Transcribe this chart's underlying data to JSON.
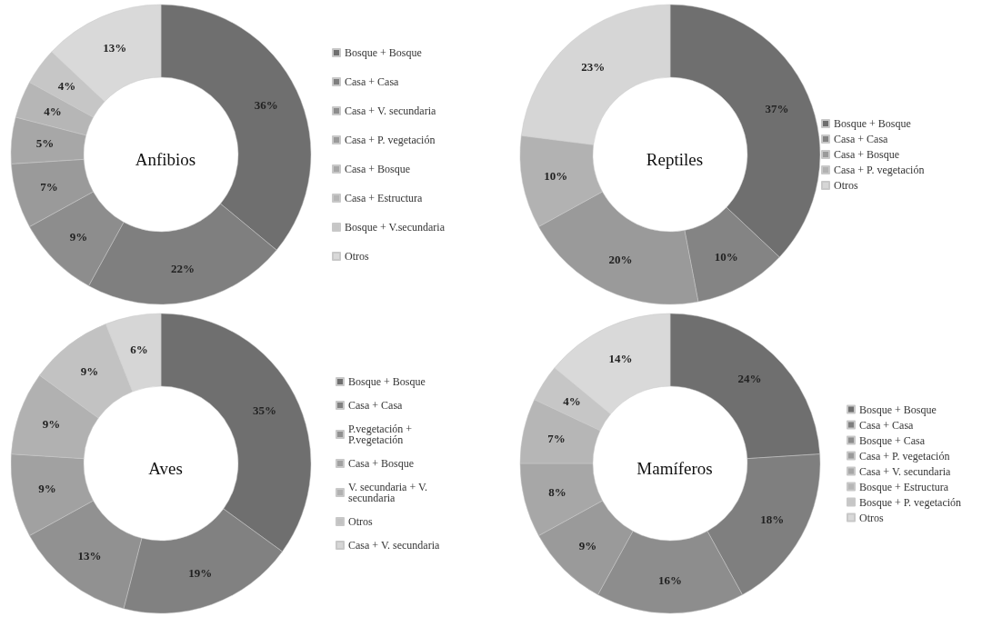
{
  "chart_data": [
    {
      "type": "donut",
      "title": "Anfibios",
      "categories": [
        "Bosque + Bosque",
        "Casa + Casa",
        "Casa + V. secundaria",
        "Casa + P. vegetación",
        "Casa + Bosque",
        "Casa + Estructura",
        "Bosque + V.secundaria",
        "Otros"
      ],
      "values": [
        36,
        22,
        9,
        7,
        5,
        4,
        4,
        13
      ],
      "value_labels": [
        "36%",
        "22%",
        "9%",
        "7%",
        "5%",
        "4%",
        "4%",
        "13%"
      ],
      "colors": [
        "#6f6f6f",
        "#7f7f7f",
        "#8d8d8d",
        "#9a9a9a",
        "#a7a7a7",
        "#b6b6b6",
        "#c6c6c6",
        "#d9d9d9"
      ],
      "legend": "right"
    },
    {
      "type": "donut",
      "title": "Reptiles",
      "categories": [
        "Bosque + Bosque",
        "Casa + Casa",
        "Casa + Bosque",
        "Casa + P. vegetación",
        "Otros"
      ],
      "values": [
        37,
        10,
        20,
        10,
        23
      ],
      "value_labels": [
        "37%",
        "10%",
        "20%",
        "10%",
        "23%"
      ],
      "colors": [
        "#6f6f6f",
        "#848484",
        "#9a9a9a",
        "#b2b2b2",
        "#d6d6d6"
      ],
      "legend": "right"
    },
    {
      "type": "donut",
      "title": "Aves",
      "categories": [
        "Bosque + Bosque",
        "Casa + Casa",
        "P.vegetación + P.vegetación",
        "Casa + Bosque",
        "V. secundaria + V. secundaria",
        "Otros",
        "Casa + V. secundaria"
      ],
      "values": [
        35,
        19,
        13,
        9,
        9,
        9,
        6
      ],
      "value_labels": [
        "35%",
        "19%",
        "13%",
        "9%",
        "9%",
        "9%",
        "6%"
      ],
      "colors": [
        "#6f6f6f",
        "#818181",
        "#919191",
        "#a1a1a1",
        "#b1b1b1",
        "#c2c2c2",
        "#d6d6d6"
      ],
      "legend": "right"
    },
    {
      "type": "donut",
      "title": "Mamíferos",
      "categories": [
        "Bosque + Bosque",
        "Casa + Casa",
        "Bosque + Casa",
        "Casa + P. vegetación",
        "Casa + V. secundaria",
        "Bosque + Estructura",
        "Bosque + P. vegetación",
        "Otros"
      ],
      "values": [
        24,
        18,
        16,
        9,
        8,
        7,
        4,
        14
      ],
      "value_labels": [
        "24%",
        "18%",
        "16%",
        "9%",
        "8%",
        "7%",
        "4%",
        "14%"
      ],
      "colors": [
        "#6f6f6f",
        "#7f7f7f",
        "#8d8d8d",
        "#9a9a9a",
        "#a7a7a7",
        "#b6b6b6",
        "#c6c6c6",
        "#d9d9d9"
      ],
      "legend": "right"
    }
  ]
}
